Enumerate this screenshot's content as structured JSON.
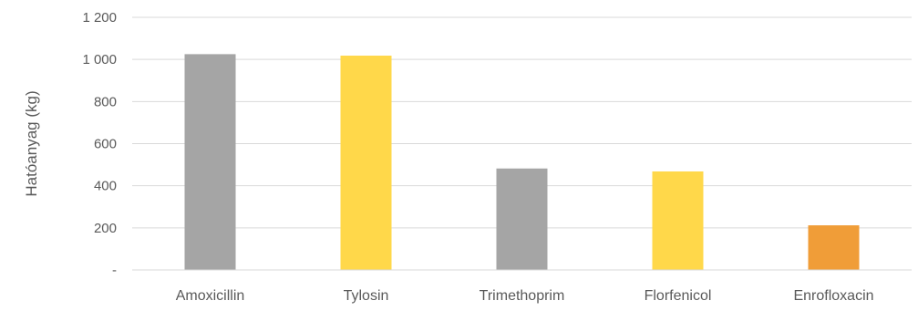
{
  "chart_data": {
    "type": "bar",
    "title": "",
    "xlabel": "",
    "ylabel": "Hatóanyag (kg)",
    "categories": [
      "Amoxicillin",
      "Tylosin",
      "Trimethoprim",
      "Florfenicol",
      "Enrofloxacin"
    ],
    "values": [
      1025,
      1018,
      482,
      468,
      212
    ],
    "bar_colors": [
      "#a5a5a5",
      "#ffd84a",
      "#a5a5a5",
      "#ffd84a",
      "#f09d38"
    ],
    "ylim": [
      0,
      1200
    ],
    "yticks": [
      0,
      200,
      400,
      600,
      800,
      1000,
      1200
    ],
    "ytick_labels": [
      "-",
      "200",
      "400",
      "600",
      "800",
      "1 000",
      "1 200"
    ],
    "grid": true,
    "gridline_color": "#d9d9d9",
    "legend": false
  }
}
